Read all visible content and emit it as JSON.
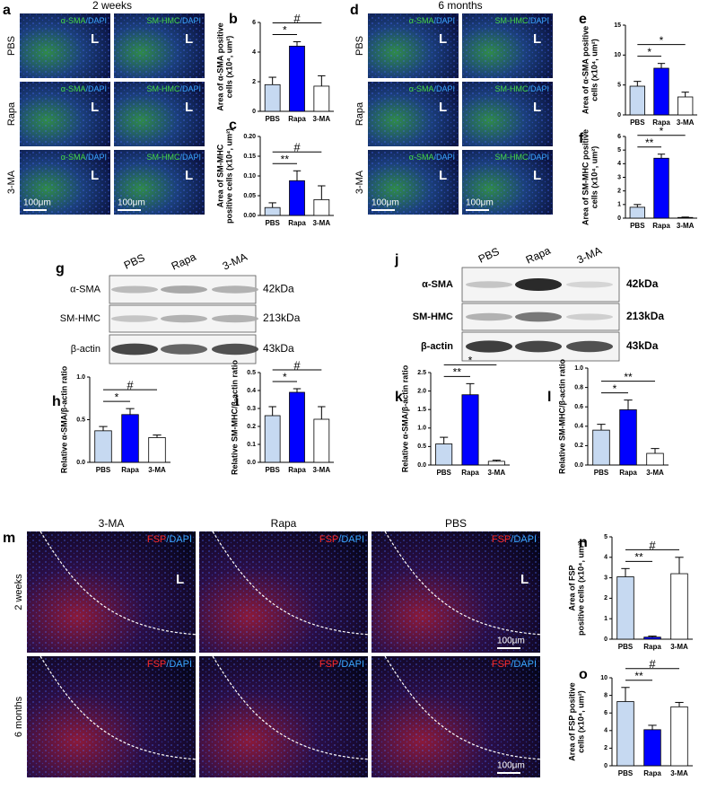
{
  "images": [
    {
      "letter": "a",
      "title": "2 weeks",
      "rows": [
        "PBS",
        "Rapa",
        "3-MA"
      ],
      "columns": [
        {
          "stain": "α-SMA",
          "counter": "/DAPI"
        },
        {
          "stain": "SM-HMC",
          "counter": "/DAPI"
        }
      ],
      "lumen": "L",
      "scale": "100μm"
    },
    {
      "letter": "d",
      "title": "6 months",
      "rows": [
        "PBS",
        "Rapa",
        "3-MA"
      ],
      "columns": [
        {
          "stain": "α-SMA",
          "counter": "/DAPI"
        },
        {
          "stain": "SM-HMC",
          "counter": "/DAPI"
        }
      ],
      "lumen": "L",
      "scale": "100μm"
    },
    {
      "letter": "m",
      "rows": [
        "2 weeks",
        "6 months"
      ],
      "columns": [
        {
          "name": "3-MA",
          "stain": "FSP",
          "counter": "/DAPI"
        },
        {
          "name": "Rapa",
          "stain": "FSP",
          "counter": "/DAPI"
        },
        {
          "name": "PBS",
          "stain": "FSP",
          "counter": "/DAPI"
        }
      ],
      "lumen": "L",
      "scale": "100μm"
    }
  ],
  "blots": [
    {
      "letter": "g",
      "lanes": [
        "PBS",
        "Rapa",
        "3-MA"
      ],
      "rows": [
        {
          "protein": "α-SMA",
          "size": "42kDa"
        },
        {
          "protein": "SM-HMC",
          "size": "213kDa"
        },
        {
          "protein": "β-actin",
          "size": "43kDa"
        }
      ]
    },
    {
      "letter": "j",
      "lanes": [
        "PBS",
        "Rapa",
        "3-MA"
      ],
      "rows": [
        {
          "protein": "α-SMA",
          "size": "42kDa"
        },
        {
          "protein": "SM-HMC",
          "size": "213kDa"
        },
        {
          "protein": "β-actin",
          "size": "43kDa"
        }
      ]
    }
  ],
  "chart_data": [
    {
      "type": "bar",
      "letter": "b",
      "ylabel": [
        "Area of α-SMA positive",
        "cells (x10⁴, um²)"
      ],
      "categories": [
        "PBS",
        "Rapa",
        "3-MA"
      ],
      "colors": [
        "#c6d9f1",
        "#0000ff",
        "#ffffff"
      ],
      "values": [
        1.8,
        4.4,
        1.7
      ],
      "errors": [
        0.5,
        0.3,
        0.7
      ],
      "ylim": [
        0,
        6
      ],
      "yticks": [
        0,
        2,
        4,
        6
      ],
      "annotations": [
        {
          "text": "*",
          "between": [
            "PBS",
            "Rapa"
          ]
        },
        {
          "text": "#",
          "between": [
            "PBS",
            "3-MA"
          ]
        }
      ]
    },
    {
      "type": "bar",
      "letter": "c",
      "ylabel": [
        "Area of SM-MHC",
        "positive cells (x10⁴, um²)"
      ],
      "categories": [
        "PBS",
        "Rapa",
        "3-MA"
      ],
      "colors": [
        "#c6d9f1",
        "#0000ff",
        "#ffffff"
      ],
      "values": [
        0.02,
        0.088,
        0.04
      ],
      "errors": [
        0.012,
        0.025,
        0.035
      ],
      "ylim": [
        0,
        0.2
      ],
      "yticks": [
        {
          "value": 0,
          "label": "0.00"
        },
        0.05,
        {
          "value": 0.1,
          "label": "0.10"
        },
        0.15,
        {
          "value": 0.2,
          "label": "0.20"
        }
      ],
      "annotations": [
        {
          "text": "**",
          "between": [
            "PBS",
            "Rapa"
          ]
        },
        {
          "text": "#",
          "between": [
            "PBS",
            "3-MA"
          ]
        }
      ]
    },
    {
      "type": "bar",
      "letter": "e",
      "ylabel": [
        "Area of α-SMA positive",
        "cells (x10⁴, um²)"
      ],
      "categories": [
        "PBS",
        "Rapa",
        "3-MA"
      ],
      "colors": [
        "#c6d9f1",
        "#0000ff",
        "#ffffff"
      ],
      "values": [
        4.8,
        7.8,
        3.0
      ],
      "errors": [
        0.8,
        0.8,
        0.8
      ],
      "ylim": [
        0,
        15
      ],
      "yticks": [
        0,
        5,
        10,
        15
      ],
      "annotations": [
        {
          "text": "*",
          "between": [
            "PBS",
            "Rapa"
          ]
        },
        {
          "text": "*",
          "between": [
            "PBS",
            "3-MA"
          ]
        }
      ]
    },
    {
      "type": "bar",
      "letter": "f",
      "ylabel": [
        "Area of SM-MHC positive",
        "cells (x10⁴, um²)"
      ],
      "categories": [
        "PBS",
        "Rapa",
        "3-MA"
      ],
      "colors": [
        "#c6d9f1",
        "#0000ff",
        "#ffffff"
      ],
      "values": [
        0.8,
        4.4,
        0.05
      ],
      "errors": [
        0.2,
        0.3,
        0.03
      ],
      "ylim": [
        0,
        6
      ],
      "yticks": [
        0,
        1,
        2,
        3,
        4,
        5,
        6
      ],
      "annotations": [
        {
          "text": "**",
          "between": [
            "PBS",
            "Rapa"
          ]
        },
        {
          "text": "*",
          "between": [
            "PBS",
            "3-MA"
          ]
        }
      ]
    },
    {
      "type": "bar",
      "letter": "h",
      "ylabel": [
        "Relative α-SMA/β-actin ratio"
      ],
      "categories": [
        "PBS",
        "Rapa",
        "3-MA"
      ],
      "colors": [
        "#c6d9f1",
        "#0000ff",
        "#ffffff"
      ],
      "values": [
        0.37,
        0.56,
        0.29
      ],
      "errors": [
        0.05,
        0.07,
        0.03
      ],
      "ylim": [
        0,
        1
      ],
      "yticks": [
        {
          "value": 0,
          "label": "0.0"
        },
        0.5,
        {
          "value": 1,
          "label": "1.0"
        }
      ],
      "annotations": [
        {
          "text": "*",
          "between": [
            "PBS",
            "Rapa"
          ]
        },
        {
          "text": "#",
          "between": [
            "PBS",
            "3-MA"
          ]
        }
      ]
    },
    {
      "type": "bar",
      "letter": "i",
      "ylabel": [
        "Relative SM-MHC/β-actin ratio"
      ],
      "categories": [
        "PBS",
        "Rapa",
        "3-MA"
      ],
      "colors": [
        "#c6d9f1",
        "#0000ff",
        "#ffffff"
      ],
      "values": [
        0.26,
        0.39,
        0.24
      ],
      "errors": [
        0.05,
        0.02,
        0.07
      ],
      "ylim": [
        0,
        0.5
      ],
      "yticks": [
        {
          "value": 0,
          "label": "0.0"
        },
        0.1,
        0.2,
        0.3,
        0.4,
        0.5
      ],
      "annotations": [
        {
          "text": "*",
          "between": [
            "PBS",
            "Rapa"
          ]
        },
        {
          "text": "#",
          "between": [
            "PBS",
            "3-MA"
          ]
        }
      ]
    },
    {
      "type": "bar",
      "letter": "k",
      "ylabel": [
        "Relative α-SMA/β-actin ratio"
      ],
      "categories": [
        "PBS",
        "Rapa",
        "3-MA"
      ],
      "colors": [
        "#c6d9f1",
        "#0000ff",
        "#ffffff"
      ],
      "values": [
        0.57,
        1.9,
        0.1
      ],
      "errors": [
        0.18,
        0.3,
        0.03
      ],
      "ylim": [
        0,
        2.5
      ],
      "yticks": [
        {
          "value": 0,
          "label": "0.0"
        },
        0.5,
        {
          "value": 1,
          "label": "1.0"
        },
        1.5,
        {
          "value": 2,
          "label": "2.0"
        },
        2.5
      ],
      "annotations": [
        {
          "text": "**",
          "between": [
            "PBS",
            "Rapa"
          ]
        },
        {
          "text": "*",
          "between": [
            "PBS",
            "3-MA"
          ]
        }
      ]
    },
    {
      "type": "bar",
      "letter": "l",
      "ylabel": [
        "Relative SM-MHC/β-actin ratio"
      ],
      "categories": [
        "PBS",
        "Rapa",
        "3-MA"
      ],
      "colors": [
        "#c6d9f1",
        "#0000ff",
        "#ffffff"
      ],
      "values": [
        0.36,
        0.57,
        0.12
      ],
      "errors": [
        0.06,
        0.1,
        0.05
      ],
      "ylim": [
        0,
        1
      ],
      "yticks": [
        {
          "value": 0,
          "label": "0.0"
        },
        0.2,
        0.4,
        0.6,
        0.8,
        {
          "value": 1,
          "label": "1.0"
        }
      ],
      "annotations": [
        {
          "text": "*",
          "between": [
            "PBS",
            "Rapa"
          ]
        },
        {
          "text": "**",
          "between": [
            "PBS",
            "3-MA"
          ]
        }
      ]
    },
    {
      "type": "bar",
      "letter": "n",
      "ylabel": [
        "Area of FSP",
        "positive cells (x10⁴, um²)"
      ],
      "categories": [
        "PBS",
        "Rapa",
        "3-MA"
      ],
      "colors": [
        "#c6d9f1",
        "#0000ff",
        "#ffffff"
      ],
      "values": [
        3.05,
        0.1,
        3.2
      ],
      "errors": [
        0.4,
        0.05,
        0.8
      ],
      "ylim": [
        0,
        5
      ],
      "yticks": [
        0,
        1,
        2,
        3,
        4,
        5
      ],
      "annotations": [
        {
          "text": "**",
          "between": [
            "PBS",
            "Rapa"
          ]
        },
        {
          "text": "#",
          "between": [
            "PBS",
            "3-MA"
          ]
        }
      ]
    },
    {
      "type": "bar",
      "letter": "o",
      "ylabel": [
        "Area of FSP positive",
        "cells (x10⁴, um²)"
      ],
      "categories": [
        "PBS",
        "Rapa",
        "3-MA"
      ],
      "colors": [
        "#c6d9f1",
        "#0000ff",
        "#ffffff"
      ],
      "values": [
        7.3,
        4.1,
        6.7
      ],
      "errors": [
        1.6,
        0.5,
        0.5
      ],
      "ylim": [
        0,
        10
      ],
      "yticks": [
        0,
        2,
        4,
        6,
        8,
        10
      ],
      "annotations": [
        {
          "text": "**",
          "between": [
            "PBS",
            "Rapa"
          ]
        },
        {
          "text": "#",
          "between": [
            "PBS",
            "3-MA"
          ]
        }
      ]
    }
  ]
}
